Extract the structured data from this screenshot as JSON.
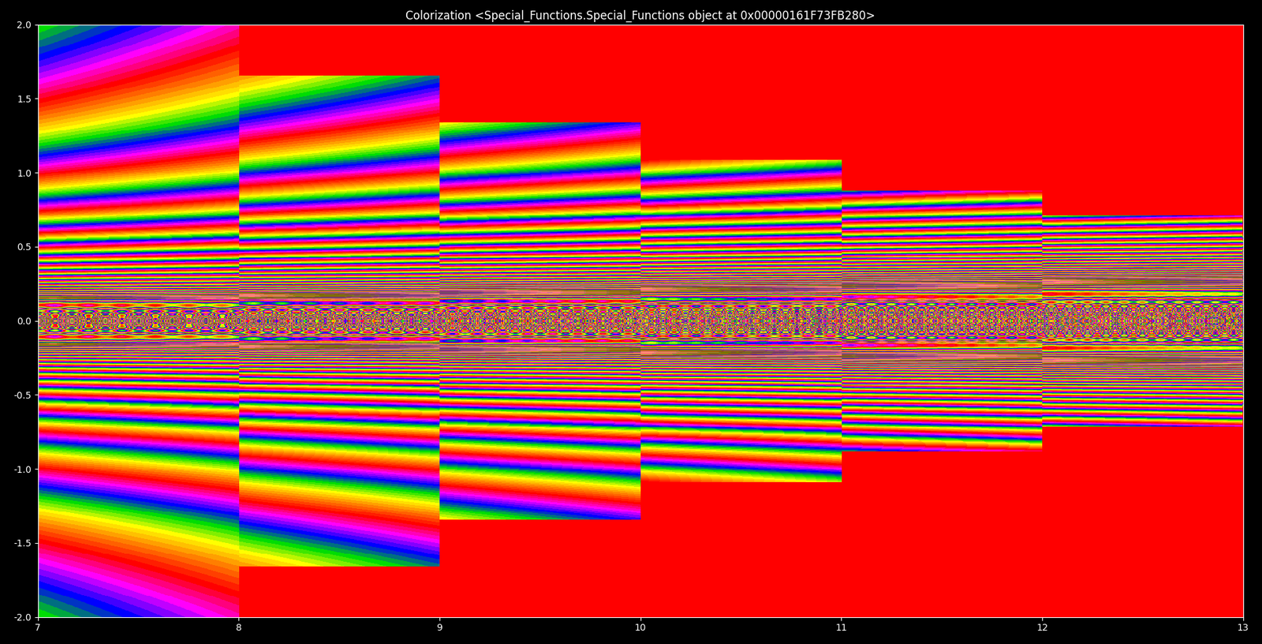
{
  "chart_data": {
    "type": "image",
    "title": "Colorization <Special_Functions.Special_Functions object at 0x00000161F73FB280>",
    "xlim": [
      7,
      13
    ],
    "ylim": [
      -2.0,
      2.0
    ],
    "xticks": [
      7,
      8,
      9,
      10,
      11,
      12,
      13
    ],
    "yticks": [
      -2.0,
      -1.5,
      -1.0,
      -0.5,
      0.0,
      0.5,
      1.0,
      1.5,
      2.0
    ],
    "grid": false
  }
}
